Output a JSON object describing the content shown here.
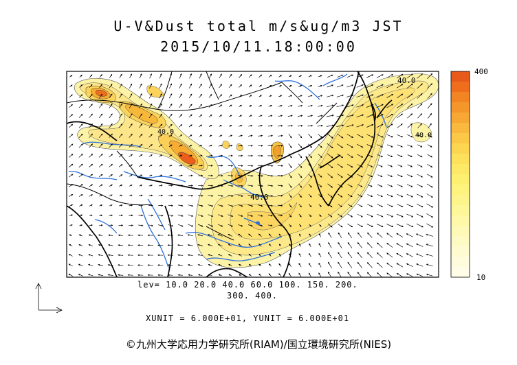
{
  "title": {
    "line1": "U-V&Dust total m/s&ug/m3 JST",
    "line2": "2015/10/11.18:00:00"
  },
  "contour_labels": [
    "40.0",
    "40.0",
    "40.0",
    "40.0"
  ],
  "levels": {
    "line1": "lev= 10.0 20.0 40.0 60.0 100. 150. 200.",
    "line2": "300. 400."
  },
  "units_line": "XUNIT = 6.000E+01, YUNIT = 6.000E+01",
  "colorbar": {
    "top_label": "400",
    "bottom_label": "10",
    "colors": [
      "#e85a1a",
      "#ef6e1e",
      "#f28423",
      "#f5962a",
      "#f7a834",
      "#f9b93e",
      "#fbc947",
      "#fcd650",
      "#fde15a",
      "#fde965",
      "#fdf070",
      "#fdf37e",
      "#fdf58c",
      "#fdf79a",
      "#fef8a8",
      "#fef9b6",
      "#fefac3",
      "#fefbd0",
      "#fefcdc",
      "#fffde8"
    ]
  },
  "colors": {
    "coast": "#000000",
    "rivers": "#2a6fdc",
    "dust_light": "#fdf3a6",
    "dust_mid": "#f8d45c",
    "dust_high": "#ec6a1f"
  },
  "credit": "©九州大学応用力学研究所(RIAM)/国立環境研究所(NIES)",
  "unit_vector_icon": "axis-arrows-icon"
}
